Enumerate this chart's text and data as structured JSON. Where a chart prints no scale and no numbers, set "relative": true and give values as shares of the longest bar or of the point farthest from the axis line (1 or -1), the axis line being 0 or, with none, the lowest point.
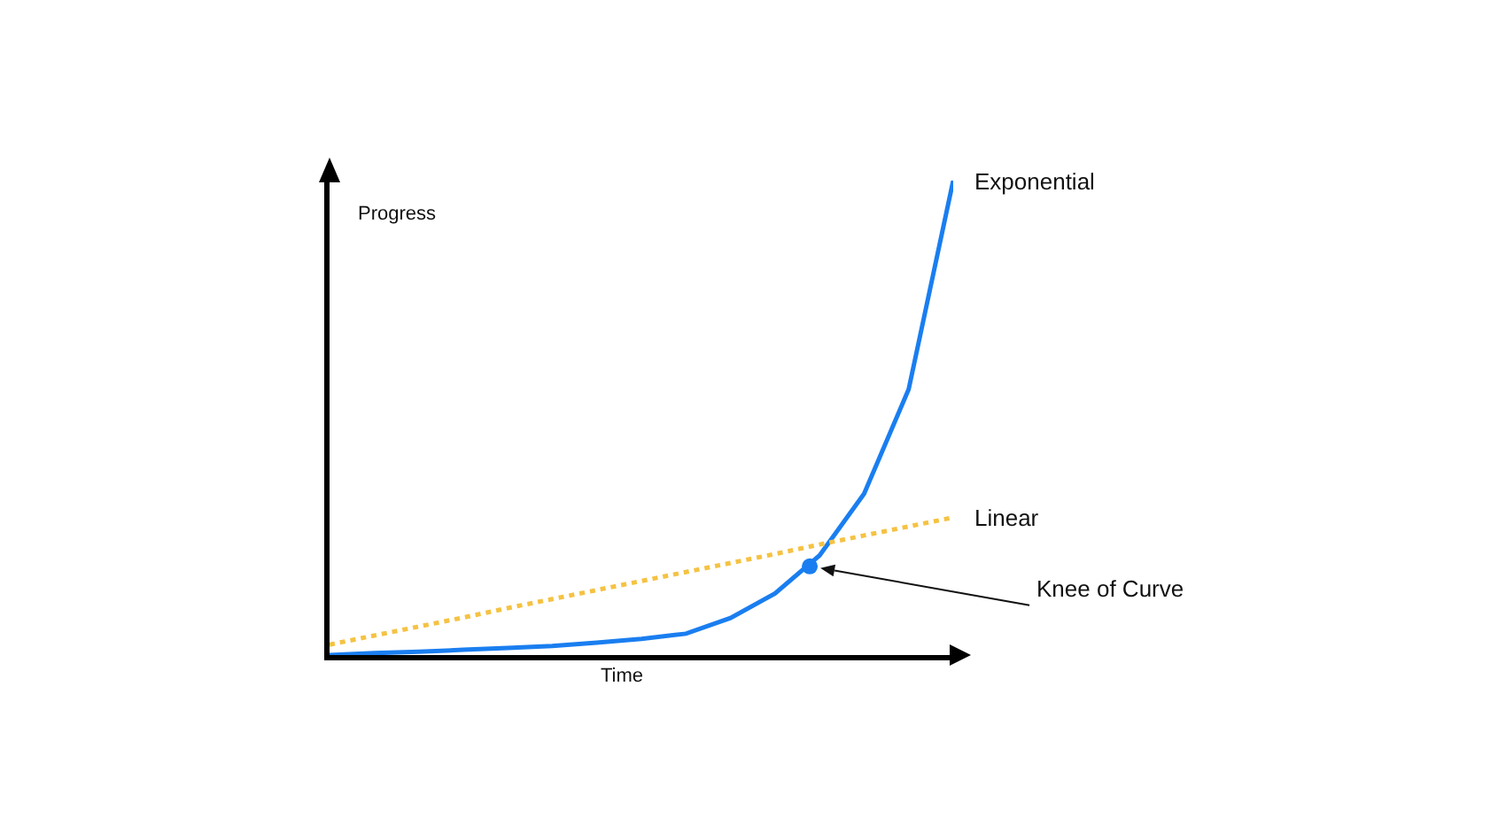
{
  "chart_data": {
    "type": "line",
    "relative": true,
    "xlabel": "Time",
    "ylabel": "Progress",
    "tick_labels": false,
    "grid": false,
    "legend": false,
    "categories": [
      null,
      null,
      null,
      null,
      null,
      null,
      null,
      null,
      null,
      null,
      null,
      null,
      null,
      null,
      null
    ],
    "series": [
      {
        "name": "Exponential",
        "color": "#1a7ef0",
        "line_style": "solid",
        "marker": "none",
        "values": [
          0,
          0.004,
          0.007,
          0.011,
          0.015,
          0.019,
          0.026,
          0.034,
          0.045,
          0.078,
          0.13,
          0.21,
          0.34,
          0.56,
          1
        ]
      },
      {
        "name": "Linear",
        "color": "#f5c242",
        "line_style": "dotted",
        "marker": "none",
        "values": [
          0.022,
          0.041,
          0.06,
          0.079,
          0.099,
          0.118,
          0.137,
          0.156,
          0.175,
          0.194,
          0.213,
          0.233,
          0.252,
          0.271,
          0.29
        ]
      }
    ],
    "annotations": [
      "Knee of Curve"
    ]
  }
}
